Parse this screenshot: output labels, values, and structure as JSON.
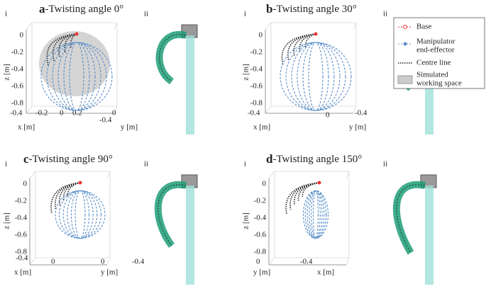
{
  "panels": [
    {
      "letter": "a",
      "title": "-Twisting angle 0°",
      "left_label": "i",
      "right_label": "ii",
      "z_label": "z [m]",
      "z_ticks": [
        "0",
        "-0.2",
        "-0.4",
        "-0.6",
        "-0.8"
      ],
      "axis1_label": "x [m]",
      "axis1_ticks": [
        "-0.4",
        "-0.2",
        "0",
        "0.2"
      ],
      "axis2_label": "y [m]",
      "axis2_ticks": [
        "-0.4",
        "0"
      ]
    },
    {
      "letter": "b",
      "title": "-Twisting angle 30°",
      "left_label": "i",
      "right_label": "ii",
      "z_label": "z [m]",
      "z_ticks": [
        "0",
        "-0.2",
        "-0.4",
        "-0.6",
        "-0.8"
      ],
      "axis1_label": "x [m]",
      "axis1_ticks": [
        "-0.4"
      ],
      "axis2_label": "y [m]",
      "axis2_ticks": [
        "0",
        "-0.4"
      ]
    },
    {
      "letter": "c",
      "title": "-Twisting angle 90°",
      "left_label": "i",
      "right_label": "ii",
      "z_label": "z [m]",
      "z_ticks": [
        "0",
        "-0.2",
        "-0.4",
        "-0.6",
        "-0.8"
      ],
      "axis1_label": "x [m]",
      "axis1_ticks": [
        "-0.4",
        "0"
      ],
      "axis2_label": "y [m]",
      "axis2_ticks": [
        "0",
        "-0.4"
      ]
    },
    {
      "letter": "d",
      "title": "-Twisting angle 150°",
      "left_label": "i",
      "right_label": "ii",
      "z_label": "z [m]",
      "z_ticks": [
        "0",
        "-0.2",
        "-0.4",
        "-0.6",
        "-0.8"
      ],
      "axis1_label": "y [m]",
      "axis1_ticks": [
        "0",
        "-0.4"
      ],
      "axis2_label": "x [m]",
      "axis2_ticks": []
    }
  ],
  "legend": {
    "items": [
      {
        "lines": [
          "Base"
        ]
      },
      {
        "lines": [
          "Manipulator",
          "end-effector"
        ]
      },
      {
        "lines": [
          "Centre line"
        ]
      },
      {
        "lines": [
          "Simulated",
          "working space"
        ]
      }
    ]
  }
}
